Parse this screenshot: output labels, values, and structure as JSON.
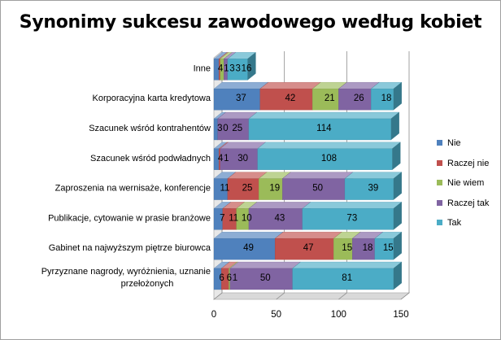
{
  "chart_data": {
    "type": "bar",
    "orientation": "horizontal",
    "stacked": true,
    "three_d": true,
    "title": "Synonimy sukcesu zawodowego według kobiet",
    "categories": [
      "Inne",
      "Korporacyjna karta kredytowa",
      "Szacunek wśród kontrahentów",
      "Szacunek wśród podwładnych",
      "Zaproszenia na wernisaże, konferencje",
      "Publikacje, cytowanie w prasie branżowe",
      "Gabinet na najwyższym piętrze biurowca",
      "Pyrzyznane nagrody, wyróżnienia, uznanie przełożonych"
    ],
    "series": [
      {
        "name": "Nie",
        "color": "#4f81bd",
        "values": [
          4,
          37,
          3,
          4,
          11,
          7,
          49,
          6
        ]
      },
      {
        "name": "Raczej nie",
        "color": "#c0504d",
        "values": [
          1,
          42,
          0,
          1,
          25,
          11,
          47,
          6
        ]
      },
      {
        "name": "Nie wiem",
        "color": "#9bbb59",
        "values": [
          3,
          21,
          0,
          0,
          19,
          10,
          15,
          1
        ]
      },
      {
        "name": "Raczej tak",
        "color": "#8064a2",
        "values": [
          3,
          26,
          25,
          30,
          50,
          43,
          18,
          50
        ]
      },
      {
        "name": "Tak",
        "color": "#4bacc6",
        "values": [
          16,
          18,
          114,
          108,
          39,
          73,
          15,
          81
        ]
      }
    ],
    "data_labels": [
      [
        "4",
        "1",
        "3",
        "3",
        "16"
      ],
      [
        "37",
        "42",
        "21",
        "26",
        "18"
      ],
      [
        "3",
        "0",
        "",
        "25",
        "114"
      ],
      [
        "4",
        "1",
        "",
        "30",
        "108"
      ],
      [
        "11",
        "25",
        "19",
        "50",
        "39"
      ],
      [
        "7",
        "11",
        "10",
        "43",
        "73"
      ],
      [
        "49",
        "47",
        "15",
        "18",
        "15"
      ],
      [
        "6",
        "6",
        "1",
        "50",
        "81"
      ]
    ],
    "xlim": [
      0,
      150
    ],
    "x_ticks": [
      "0",
      "50",
      "100",
      "150"
    ],
    "grid": true,
    "legend_position": "right"
  }
}
